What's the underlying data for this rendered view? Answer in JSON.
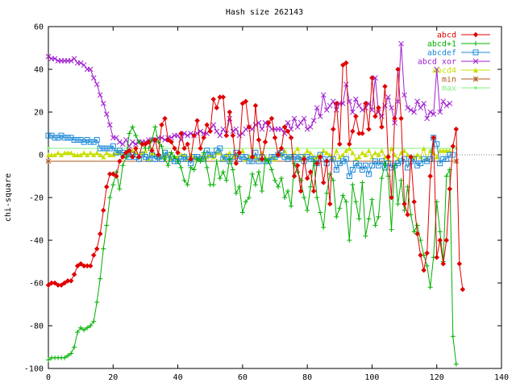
{
  "chart_data": {
    "type": "line",
    "title": "Hash size 262143",
    "xlabel": "",
    "ylabel": "chi-square",
    "xlim": [
      0,
      140
    ],
    "ylim": [
      -100,
      60
    ],
    "xticks": [
      0,
      20,
      40,
      60,
      80,
      100,
      120,
      140
    ],
    "yticks": [
      60,
      40,
      20,
      0,
      -20,
      -40,
      -60,
      -80,
      -100
    ],
    "grid": false,
    "legend_position": "top-right",
    "series": [
      {
        "name": "abcd",
        "color": "#e00000",
        "marker": "diamond",
        "values": [
          -61,
          -60,
          -60,
          -61,
          -61,
          -60,
          -59,
          -59,
          -56,
          -52,
          -51,
          -52,
          -52,
          -52,
          -47,
          -44,
          -37,
          -26,
          -15,
          -9,
          -9,
          -10,
          -3,
          -1,
          1,
          2,
          -1,
          3,
          -1,
          5,
          5,
          6,
          2,
          7,
          0,
          14,
          17,
          7,
          6,
          3,
          1,
          10,
          3,
          5,
          -2,
          9,
          16,
          3,
          8,
          14,
          11,
          26,
          22,
          27,
          27,
          9,
          20,
          9,
          -4,
          1,
          24,
          25,
          13,
          -1,
          23,
          7,
          -2,
          6,
          15,
          17,
          8,
          0,
          3,
          13,
          11,
          8,
          -10,
          -5,
          -17,
          -2,
          -11,
          -8,
          -17,
          -4,
          -1,
          -13,
          -3,
          -23,
          12,
          24,
          5,
          42,
          43,
          5,
          11,
          18,
          10,
          10,
          24,
          12,
          36,
          18,
          22,
          13,
          32,
          -1,
          -20,
          17,
          40,
          17,
          -23,
          -28,
          -1,
          -22,
          -37,
          -47,
          -54,
          -46,
          -10,
          8,
          -48,
          -40,
          -51,
          -40,
          -16,
          4,
          12,
          -51,
          -63
        ]
      },
      {
        "name": "abcd+1",
        "color": "#00b000",
        "marker": "plus",
        "values": [
          -96,
          -95,
          -95,
          -95,
          -95,
          -95,
          -94,
          -93,
          -90,
          -83,
          -81,
          -82,
          -81,
          -80,
          -78,
          -69,
          -58,
          -44,
          -33,
          -20,
          -14,
          -8,
          -16,
          -5,
          -1,
          10,
          13,
          9,
          6,
          5,
          3,
          3,
          7,
          13,
          6,
          4,
          -2,
          -5,
          1,
          -1,
          -3,
          -6,
          -12,
          -14,
          -6,
          -7,
          -2,
          -3,
          1,
          -6,
          -14,
          -14,
          -3,
          -11,
          -8,
          -12,
          -2,
          -7,
          -18,
          -15,
          -27,
          -22,
          -20,
          -9,
          -14,
          -8,
          -17,
          -2,
          -3,
          -7,
          -12,
          -15,
          -11,
          -20,
          -17,
          -24,
          -4,
          -8,
          -12,
          -20,
          -26,
          -15,
          -3,
          -20,
          -27,
          -34,
          -18,
          -9,
          -12,
          -29,
          -25,
          -19,
          -22,
          -40,
          -14,
          -22,
          -30,
          -13,
          -38,
          -30,
          -21,
          -33,
          -29,
          -11,
          -4,
          -10,
          -35,
          -5,
          -23,
          -12,
          -26,
          -15,
          -28,
          -36,
          -33,
          -40,
          -47,
          -52,
          -62,
          -48,
          -22,
          -36,
          -50,
          -10,
          -7,
          -85,
          -98
        ]
      },
      {
        "name": "abcdef",
        "color": "#1a88d8",
        "marker": "square",
        "values": [
          9,
          9,
          8,
          8,
          9,
          8,
          8,
          8,
          7,
          7,
          7,
          6,
          7,
          6,
          6,
          7,
          3,
          3,
          3,
          3,
          4,
          1,
          2,
          1,
          0,
          -1,
          0,
          -1,
          -2,
          0,
          -1,
          -2,
          0,
          -2,
          -1,
          -2,
          1,
          0,
          -2,
          -3,
          -3,
          -2,
          -1,
          -2,
          -4,
          -1,
          -1,
          -2,
          -2,
          2,
          0,
          0,
          2,
          3,
          -2,
          -1,
          -3,
          -1,
          1,
          -2,
          -1,
          -1,
          -3,
          -3,
          1,
          -3,
          -1,
          -3,
          -3,
          -1,
          -1,
          0,
          1,
          -1,
          -2,
          -1,
          -1,
          -2,
          -1,
          -3,
          -1,
          -2,
          -2,
          -4,
          0,
          -2,
          -4,
          -2,
          -2,
          -7,
          -4,
          -3,
          -2,
          -10,
          -7,
          -4,
          -5,
          -7,
          -5,
          -9,
          -5,
          -3,
          -5,
          -3,
          -6,
          -4,
          -6,
          -5,
          -4,
          -3,
          -2,
          -6,
          -3,
          -2,
          -5,
          -4,
          -2,
          -3,
          -2,
          8,
          5,
          -4,
          -2,
          -2,
          0,
          0
        ]
      },
      {
        "name": "abcd xor",
        "color": "#a020d0",
        "marker": "x",
        "values": [
          46,
          45,
          45,
          44,
          44,
          44,
          44,
          44,
          45,
          43,
          43,
          42,
          40,
          40,
          36,
          33,
          28,
          24,
          19,
          14,
          8,
          8,
          6,
          5,
          7,
          4,
          6,
          5,
          6,
          6,
          6,
          7,
          7,
          7,
          8,
          8,
          7,
          8,
          8,
          9,
          9,
          7,
          10,
          9,
          10,
          9,
          10,
          11,
          10,
          10,
          12,
          14,
          11,
          9,
          12,
          10,
          17,
          11,
          12,
          9,
          10,
          12,
          13,
          12,
          14,
          15,
          12,
          15,
          14,
          12,
          12,
          12,
          12,
          10,
          15,
          12,
          17,
          13,
          15,
          17,
          12,
          13,
          16,
          22,
          18,
          28,
          21,
          23,
          25,
          21,
          24,
          24,
          33,
          25,
          20,
          26,
          23,
          21,
          22,
          24,
          21,
          36,
          20,
          18,
          23,
          27,
          22,
          15,
          25,
          52,
          28,
          22,
          21,
          20,
          25,
          22,
          24,
          17,
          20,
          19,
          40,
          20,
          25,
          23,
          24
        ]
      },
      {
        "name": "abcd4",
        "color": "#c8e000",
        "marker": "triangle",
        "values": [
          0,
          0,
          0,
          1,
          0,
          1,
          1,
          1,
          0,
          0,
          0,
          1,
          0,
          1,
          0,
          1,
          0,
          -1,
          1,
          0,
          0,
          1,
          1,
          0,
          1,
          0,
          2,
          1,
          -1,
          1,
          2,
          -2,
          1,
          0,
          -1,
          -1,
          -1,
          0,
          -2,
          -1,
          -1,
          0,
          0,
          -2,
          0,
          -1,
          -2,
          -1,
          -2,
          -1,
          0,
          -1,
          1,
          1,
          -2,
          0,
          1,
          -1,
          0,
          1,
          2,
          -2,
          -1,
          0,
          -1,
          -2,
          1,
          -1,
          -2,
          -1,
          -2,
          1,
          0,
          2,
          -1,
          -1,
          1,
          3,
          -2,
          0,
          2,
          1,
          -1,
          -1,
          0,
          2,
          1,
          0,
          -2,
          2,
          -1,
          0,
          2,
          3,
          1,
          -2,
          -1,
          1,
          0,
          2,
          -1,
          1,
          0,
          2,
          -1,
          -2,
          3,
          0,
          -2,
          1,
          2,
          0,
          -1,
          -1,
          0,
          -1,
          3,
          -2,
          2,
          1,
          -1,
          2,
          2,
          2,
          2
        ]
      },
      {
        "name": "min",
        "color": "#b05820",
        "marker": "star",
        "const": -3,
        "range": [
          0,
          126
        ]
      },
      {
        "name": "max",
        "color": "#80f080",
        "marker": "dot",
        "const": 3,
        "range": [
          0,
          126
        ]
      }
    ]
  }
}
